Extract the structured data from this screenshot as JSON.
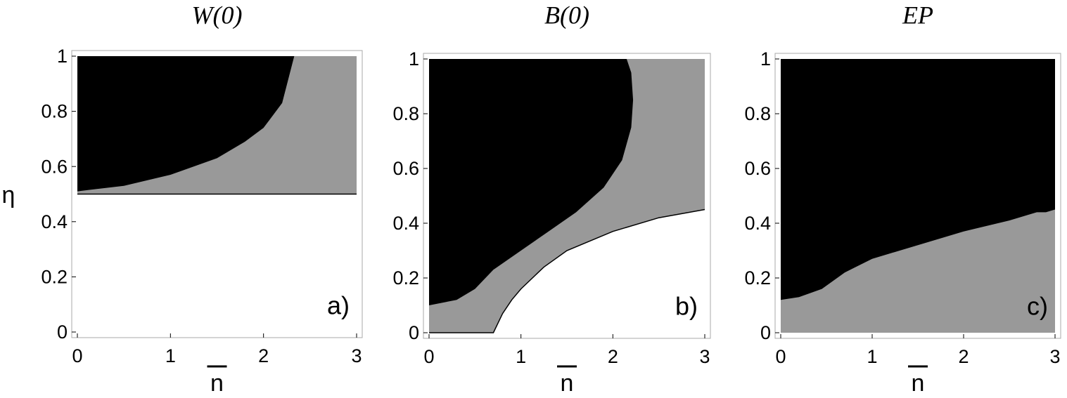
{
  "chart_data": [
    {
      "type": "region",
      "title": "W(0)",
      "xlabel": "n",
      "ylabel": "η",
      "panel_label": "a)",
      "xlim": [
        0,
        3
      ],
      "ylim": [
        0,
        1
      ],
      "xticks": [
        0,
        1,
        2,
        3
      ],
      "yticks": [
        0,
        0.2,
        0.4,
        0.6,
        0.8,
        1
      ],
      "black_color": "#000000",
      "gray_color": "#999999",
      "floor_line": true,
      "black_edge": {
        "x": [
          0,
          0.5,
          1,
          1.5,
          1.8,
          2,
          2.2,
          2.33
        ],
        "y": [
          0.51,
          0.53,
          0.57,
          0.63,
          0.69,
          0.74,
          0.83,
          1
        ]
      },
      "gray_floor": {
        "x": [
          0,
          3
        ],
        "y": [
          0.5,
          0.5
        ]
      }
    },
    {
      "type": "region",
      "title": "B(0)",
      "xlabel": "n",
      "panel_label": "b)",
      "xlim": [
        0,
        3
      ],
      "ylim": [
        0,
        1
      ],
      "xticks": [
        0,
        1,
        2,
        3
      ],
      "yticks": [
        0,
        0.2,
        0.4,
        0.6,
        0.8,
        1
      ],
      "black_color": "#000000",
      "gray_color": "#999999",
      "floor_line": true,
      "black_edge": {
        "x": [
          0,
          0.3,
          0.5,
          0.7,
          1,
          1.3,
          1.6,
          1.9,
          2.1,
          2.2,
          2.22,
          2.2,
          2.15
        ],
        "y": [
          0.1,
          0.12,
          0.16,
          0.23,
          0.3,
          0.37,
          0.44,
          0.53,
          0.63,
          0.75,
          0.85,
          0.95,
          1
        ]
      },
      "gray_floor": {
        "x": [
          0,
          0.7,
          0.8,
          0.9,
          1,
          1.25,
          1.5,
          2,
          2.5,
          3
        ],
        "y": [
          0,
          0,
          0.07,
          0.12,
          0.16,
          0.24,
          0.3,
          0.37,
          0.42,
          0.45
        ]
      }
    },
    {
      "type": "region",
      "title": "EP",
      "xlabel": "n",
      "panel_label": "c)",
      "xlim": [
        0,
        3
      ],
      "ylim": [
        0,
        1
      ],
      "xticks": [
        0,
        1,
        2,
        3
      ],
      "yticks": [
        0,
        0.2,
        0.4,
        0.6,
        0.8,
        1
      ],
      "black_color": "#000000",
      "gray_color": "#999999",
      "floor_line": false,
      "black_edge": {
        "x": [
          0,
          0.2,
          0.45,
          0.7,
          1,
          1.5,
          2,
          2.5,
          2.8,
          2.9,
          3
        ],
        "y": [
          0.12,
          0.13,
          0.16,
          0.22,
          0.27,
          0.32,
          0.37,
          0.41,
          0.44,
          0.44,
          0.45
        ]
      },
      "gray_floor": {
        "x": [
          0,
          3
        ],
        "y": [
          0,
          0
        ]
      }
    }
  ]
}
